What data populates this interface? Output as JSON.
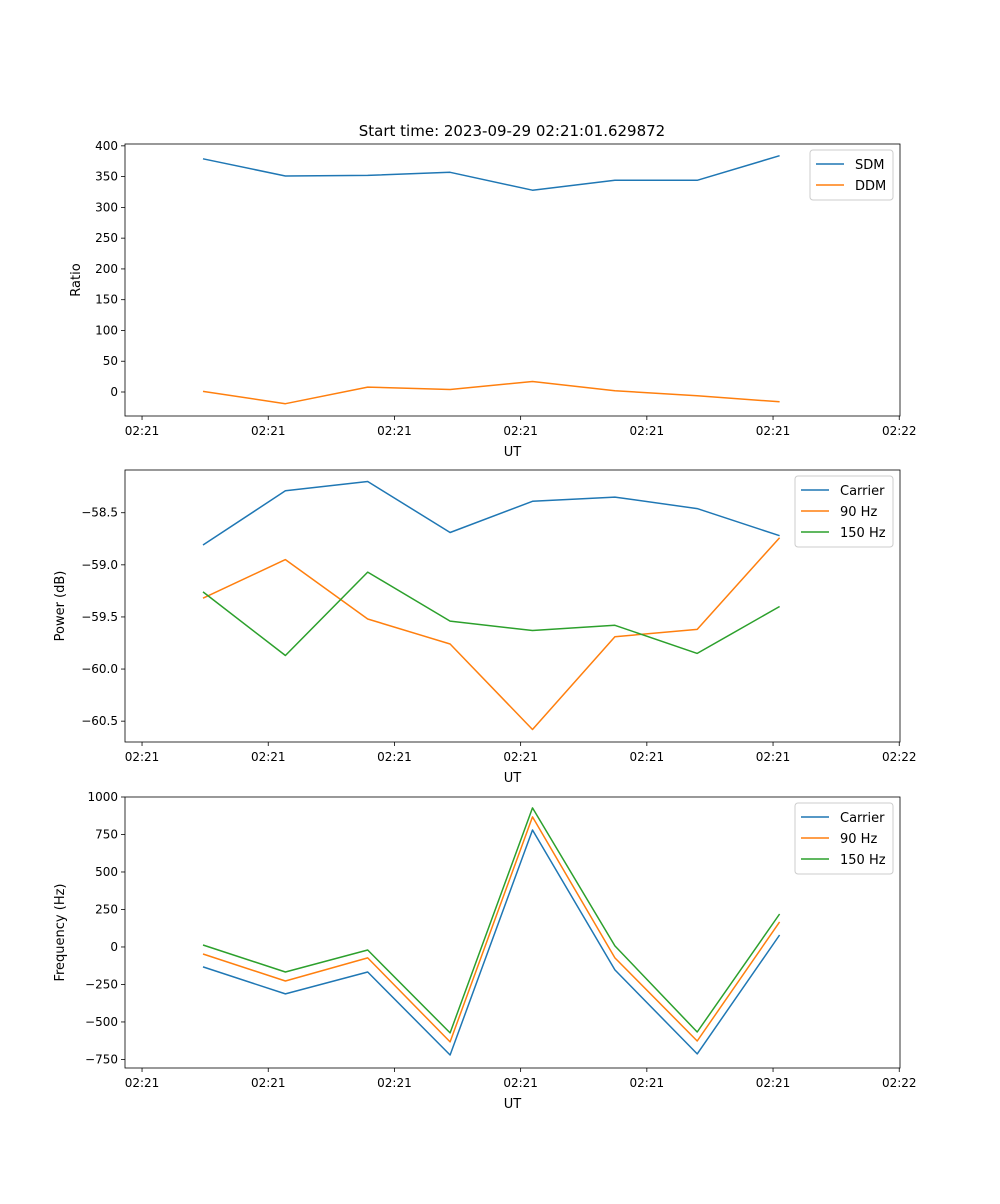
{
  "title": "Start time: 2023-09-29 02:21:01.629872",
  "chart_data": [
    {
      "type": "line",
      "xlabel": "UT",
      "ylabel": "Ratio",
      "x_unit": "seconds after 02:21:00",
      "x": [
        4.83,
        11.36,
        17.88,
        24.41,
        30.94,
        37.47,
        43.99,
        50.52
      ],
      "xlim": [
        -1.35,
        60.06
      ],
      "xticks": [
        0,
        10,
        20,
        30,
        40,
        50,
        60
      ],
      "xtick_labels": [
        "02:21",
        "02:21",
        "02:21",
        "02:21",
        "02:21",
        "02:21",
        "02:22"
      ],
      "ylim": [
        -39,
        403
      ],
      "yticks": [
        0,
        50,
        100,
        150,
        200,
        250,
        300,
        350,
        400
      ],
      "ytick_labels": [
        "0",
        "50",
        "100",
        "150",
        "200",
        "250",
        "300",
        "350",
        "400"
      ],
      "legend": "top-right",
      "series": [
        {
          "name": "SDM",
          "color": "#1f77b4",
          "values": [
            379,
            351,
            352,
            357,
            328,
            344,
            344,
            384
          ]
        },
        {
          "name": "DDM",
          "color": "#ff7f0e",
          "values": [
            1,
            -19,
            8,
            4,
            17,
            2,
            -6,
            -16
          ]
        }
      ]
    },
    {
      "type": "line",
      "xlabel": "UT",
      "ylabel": "Power (dB)",
      "x_unit": "seconds after 02:21:00",
      "x": [
        4.83,
        11.36,
        17.88,
        24.41,
        30.94,
        37.47,
        43.99,
        50.52
      ],
      "xlim": [
        -1.35,
        60.06
      ],
      "xticks": [
        0,
        10,
        20,
        30,
        40,
        50,
        60
      ],
      "xtick_labels": [
        "02:21",
        "02:21",
        "02:21",
        "02:21",
        "02:21",
        "02:21",
        "02:22"
      ],
      "ylim": [
        -60.7,
        -58.09
      ],
      "yticks": [
        -60.5,
        -60.0,
        -59.5,
        -59.0,
        -58.5
      ],
      "ytick_labels": [
        "−60.5",
        "−60.0",
        "−59.5",
        "−59.0",
        "−58.5"
      ],
      "legend": "top-right",
      "series": [
        {
          "name": "Carrier",
          "color": "#1f77b4",
          "values": [
            -58.81,
            -58.29,
            -58.2,
            -58.69,
            -58.39,
            -58.35,
            -58.46,
            -58.72
          ]
        },
        {
          "name": "90 Hz",
          "color": "#ff7f0e",
          "values": [
            -59.32,
            -58.95,
            -59.52,
            -59.76,
            -60.58,
            -59.69,
            -59.62,
            -58.74
          ]
        },
        {
          "name": "150 Hz",
          "color": "#2ca02c",
          "values": [
            -59.26,
            -59.87,
            -59.07,
            -59.54,
            -59.63,
            -59.58,
            -59.85,
            -59.4
          ]
        }
      ]
    },
    {
      "type": "line",
      "xlabel": "UT",
      "ylabel": "Frequency (Hz)",
      "x_unit": "seconds after 02:21:00",
      "x": [
        4.83,
        11.36,
        17.88,
        24.41,
        30.94,
        37.47,
        43.99,
        50.52
      ],
      "xlim": [
        -1.35,
        60.06
      ],
      "xticks": [
        0,
        10,
        20,
        30,
        40,
        50,
        60
      ],
      "xtick_labels": [
        "02:21",
        "02:21",
        "02:21",
        "02:21",
        "02:21",
        "02:21",
        "02:22"
      ],
      "ylim": [
        -807,
        1000
      ],
      "yticks": [
        -750,
        -500,
        -250,
        0,
        250,
        500,
        750,
        1000
      ],
      "ytick_labels": [
        "−750",
        "−500",
        "−250",
        "0",
        "250",
        "500",
        "750",
        "1000"
      ],
      "legend": "top-right",
      "series": [
        {
          "name": "Carrier",
          "color": "#1f77b4",
          "values": [
            -133,
            -313,
            -167,
            -720,
            780,
            -153,
            -713,
            80
          ]
        },
        {
          "name": "90 Hz",
          "color": "#ff7f0e",
          "values": [
            -47,
            -227,
            -73,
            -633,
            867,
            -73,
            -627,
            167
          ]
        },
        {
          "name": "150 Hz",
          "color": "#2ca02c",
          "values": [
            13,
            -167,
            -20,
            -573,
            927,
            7,
            -567,
            220
          ]
        }
      ]
    }
  ]
}
